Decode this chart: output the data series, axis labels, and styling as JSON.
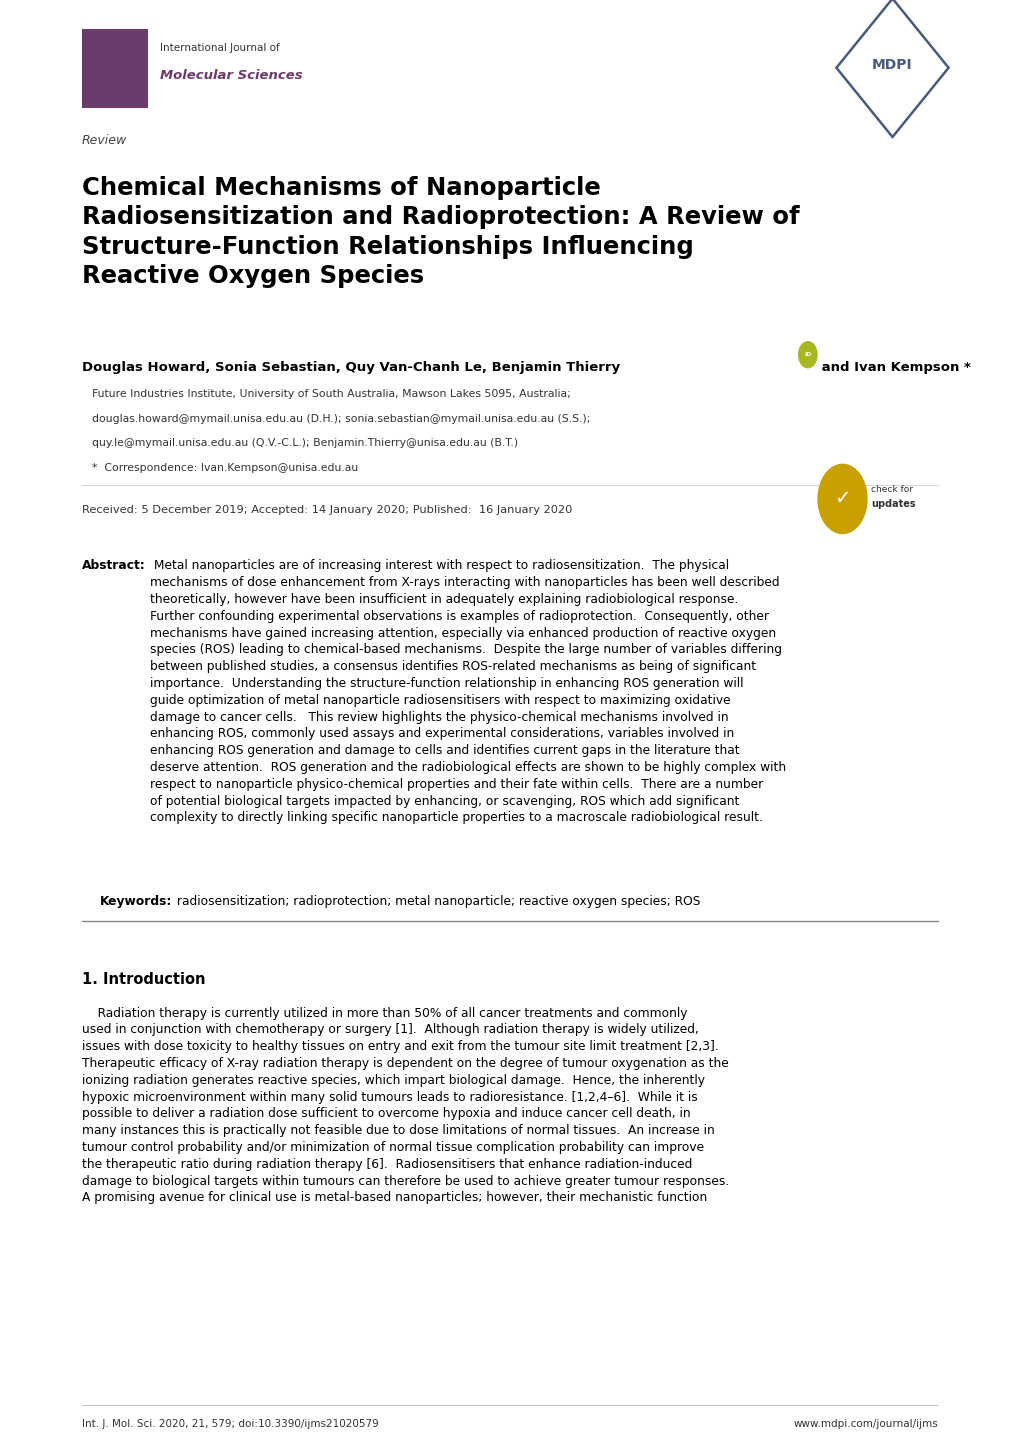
{
  "background_color": "#ffffff",
  "page_width": 10.2,
  "page_height": 14.42,
  "journal_name_line1": "International Journal of",
  "journal_name_line2": "Molecular Sciences",
  "article_type": "Review",
  "title": "Chemical Mechanisms of Nanoparticle\nRadiosensitization and Radioprotection: A Review of\nStructure-Function Relationships Inﬂuencing\nReactive Oxygen Species",
  "affiliation1": "Future Industries Institute, University of South Australia, Mawson Lakes 5095, Australia;",
  "affiliation2": "douglas.howard@mymail.unisa.edu.au (D.H.); sonia.sebastian@mymail.unisa.edu.au (S.S.);",
  "affiliation3": "quy.le@mymail.unisa.edu.au (Q.V.-C.L.); Benjamin.Thierry@unisa.edu.au (B.T.)",
  "affiliation4": "*  Correspondence: Ivan.Kempson@unisa.edu.au",
  "received": "Received: 5 December 2019; Accepted: 14 January 2020; Published:  16 January 2020",
  "abstract_label": "Abstract:",
  "abstract_text": " Metal nanoparticles are of increasing interest with respect to radiosensitization.  The physical\nmechanisms of dose enhancement from X-rays interacting with nanoparticles has been well described\ntheoretically, however have been insufficient in adequately explaining radiobiological response.\nFurther confounding experimental observations is examples of radioprotection.  Consequently, other\nmechanisms have gained increasing attention, especially via enhanced production of reactive oxygen\nspecies (ROS) leading to chemical-based mechanisms.  Despite the large number of variables differing\nbetween published studies, a consensus identifies ROS-related mechanisms as being of significant\nimportance.  Understanding the structure-function relationship in enhancing ROS generation will\nguide optimization of metal nanoparticle radiosensitisers with respect to maximizing oxidative\ndamage to cancer cells.   This review highlights the physico-chemical mechanisms involved in\nenhancing ROS, commonly used assays and experimental considerations, variables involved in\nenhancing ROS generation and damage to cells and identifies current gaps in the literature that\ndeserve attention.  ROS generation and the radiobiological effects are shown to be highly complex with\nrespect to nanoparticle physico-chemical properties and their fate within cells.  There are a number\nof potential biological targets impacted by enhancing, or scavenging, ROS which add significant\ncomplexity to directly linking specific nanoparticle properties to a macroscale radiobiological result.",
  "keywords_label": "Keywords:",
  "keywords_text": " radiosensitization; radioprotection; metal nanoparticle; reactive oxygen species; ROS",
  "section1_title": "1. Introduction",
  "intro_text1": "    Radiation therapy is currently utilized in more than 50% of all cancer treatments and commonly\nused in conjunction with chemotherapy or surgery [1].  Although radiation therapy is widely utilized,\nissues with dose toxicity to healthy tissues on entry and exit from the tumour site limit treatment [2,3].\nTherapeutic efficacy of X-ray radiation therapy is dependent on the degree of tumour oxygenation as the\nionizing radiation generates reactive species, which impart biological damage.  Hence, the inherently\nhypoxic microenvironment within many solid tumours leads to radioresistance. [1,2,4–6].  While it is\npossible to deliver a radiation dose sufficient to overcome hypoxia and induce cancer cell death, in\nmany instances this is practically not feasible due to dose limitations of normal tissues.  An increase in\ntumour control probability and/or minimization of normal tissue complication probability can improve\nthe therapeutic ratio during radiation therapy [6].  Radiosensitisers that enhance radiation-induced\ndamage to biological targets within tumours can therefore be used to achieve greater tumour responses.\nA promising avenue for clinical use is metal-based nanoparticles; however, their mechanistic function",
  "footer_left": "Int. J. Mol. Sci. 2020, 21, 579; doi:10.3390/ijms21020579",
  "footer_right": "www.mdpi.com/journal/ijms",
  "logo_box_color": "#6b3c6b",
  "mdpi_color": "#4a5a7a",
  "journal_italic_color": "#6b3c6b"
}
